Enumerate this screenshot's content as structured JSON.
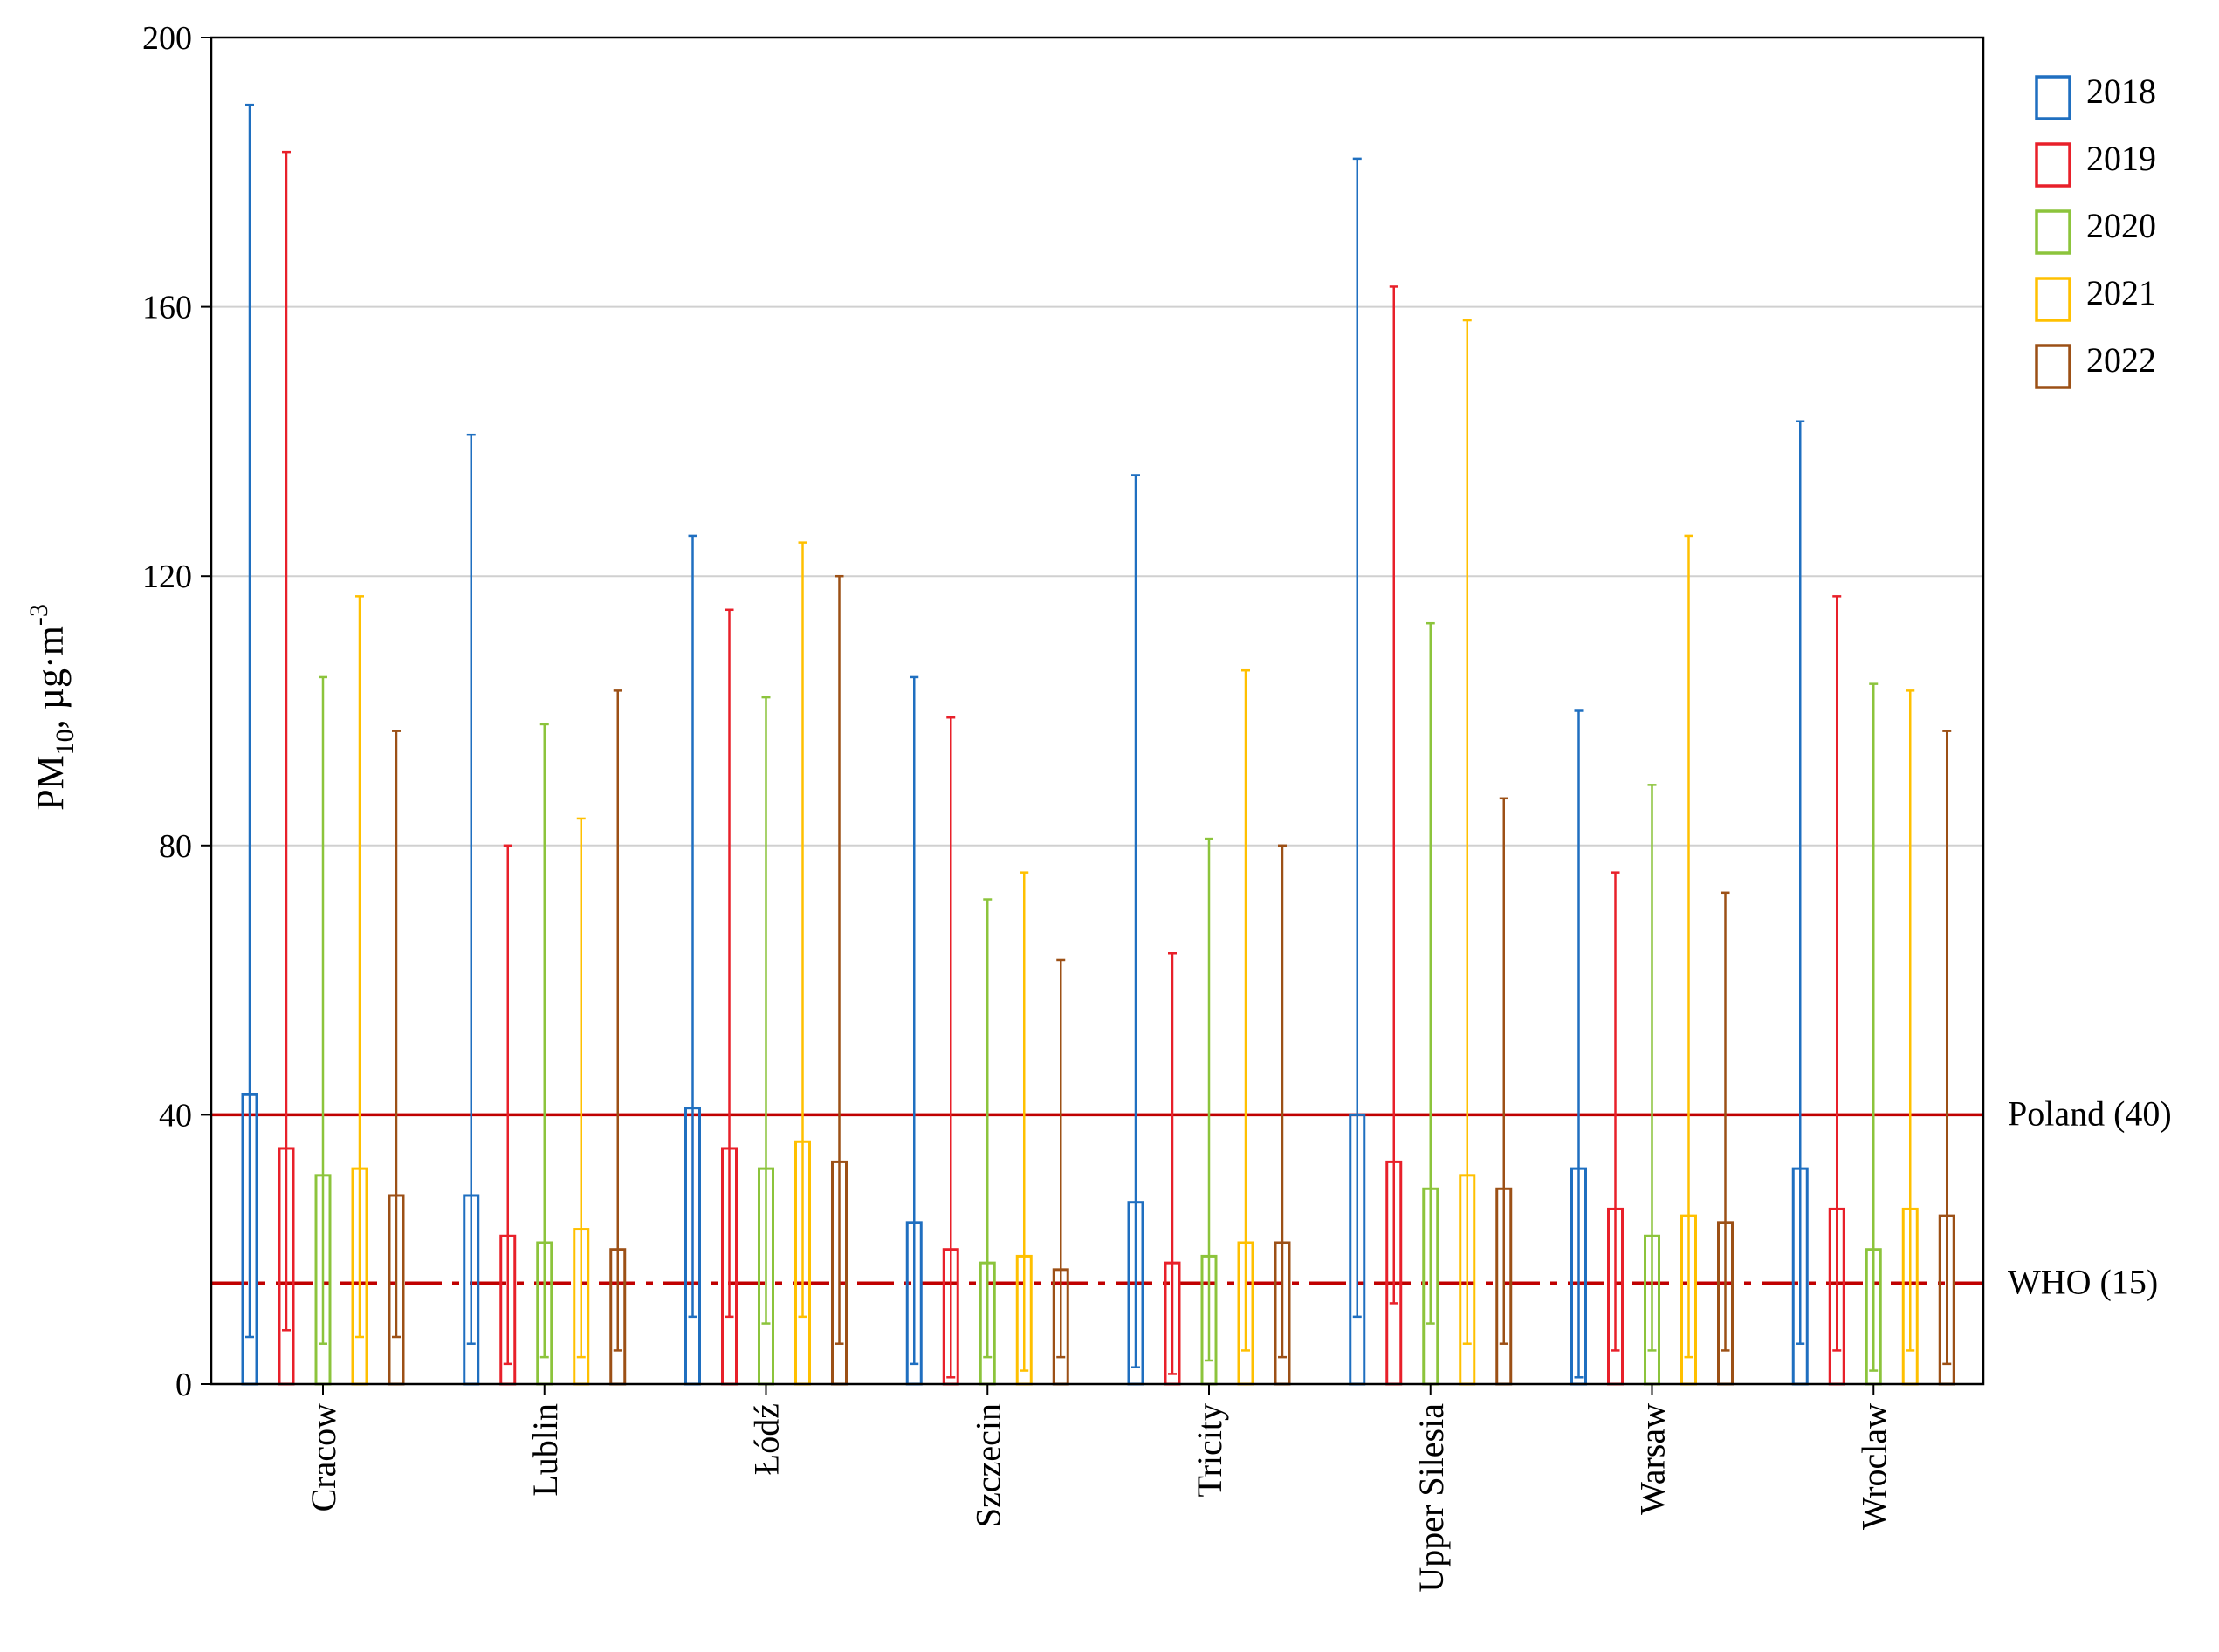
{
  "chart_data": {
    "type": "bar",
    "subtype": "range-bars-with-whiskers",
    "ylabel": "PM10, µg·m-3",
    "ylabel_parts": {
      "base": "PM",
      "subscript": "10",
      "unit": ", µg·m",
      "superscript": "-3"
    },
    "ylim": [
      0,
      200
    ],
    "yticks": [
      0,
      40,
      80,
      120,
      160,
      200
    ],
    "grid": true,
    "legend_position": "top-right",
    "categories": [
      "Cracow",
      "Lublin",
      "Łódź",
      "Szczecin",
      "Tricity",
      "Upper Silesia",
      "Warsaw",
      "Wroclaw"
    ],
    "series": [
      {
        "name": "2018",
        "color": "#1f6fc0",
        "mean": [
          43,
          28,
          41,
          24,
          27,
          40,
          32,
          32
        ],
        "min": [
          7,
          6,
          10,
          3,
          2.5,
          10,
          1,
          6
        ],
        "max": [
          190,
          141,
          126,
          105,
          135,
          182,
          100,
          143
        ]
      },
      {
        "name": "2019",
        "color": "#e8202a",
        "mean": [
          35,
          22,
          35,
          20,
          18,
          33,
          26,
          26
        ],
        "min": [
          8,
          3,
          10,
          1,
          1.5,
          12,
          5,
          5
        ],
        "max": [
          183,
          80,
          115,
          99,
          64,
          163,
          76,
          117
        ]
      },
      {
        "name": "2020",
        "color": "#8cc43c",
        "mean": [
          31,
          21,
          32,
          18,
          19,
          29,
          22,
          20
        ],
        "min": [
          6,
          4,
          9,
          4,
          3.5,
          9,
          5,
          2
        ],
        "max": [
          105,
          98,
          102,
          72,
          81,
          113,
          89,
          104
        ]
      },
      {
        "name": "2021",
        "color": "#ffc000",
        "mean": [
          32,
          23,
          36,
          19,
          21,
          31,
          25,
          26
        ],
        "min": [
          7,
          4,
          10,
          2,
          5,
          6,
          4,
          5
        ],
        "max": [
          117,
          84,
          125,
          76,
          106,
          158,
          126,
          103
        ]
      },
      {
        "name": "2022",
        "color": "#9c5016",
        "mean": [
          28,
          20,
          33,
          17,
          21,
          29,
          24,
          25
        ],
        "min": [
          7,
          5,
          6,
          4,
          4,
          6,
          5,
          3
        ],
        "max": [
          97,
          103,
          120,
          63,
          80,
          87,
          73,
          97
        ]
      }
    ],
    "reference_lines": [
      {
        "label": "Poland (40)",
        "value": 40,
        "color": "#c00000",
        "style": "solid"
      },
      {
        "label": "WHO (15)",
        "value": 15,
        "color": "#c00000",
        "style": "dashed"
      }
    ]
  }
}
